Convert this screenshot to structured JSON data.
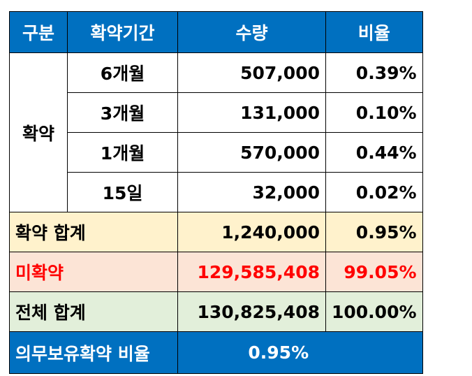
{
  "header": {
    "col1": "구분",
    "col2": "확약기간",
    "col3": "수량",
    "col4": "비율"
  },
  "group_label": "확약",
  "rows": [
    {
      "period": "6개월",
      "qty": "507,000",
      "ratio": "0.39%"
    },
    {
      "period": "3개월",
      "qty": "131,000",
      "ratio": "0.10%"
    },
    {
      "period": "1개월",
      "qty": "570,000",
      "ratio": "0.44%"
    },
    {
      "period": "15일",
      "qty": "32,000",
      "ratio": "0.02%"
    }
  ],
  "subtotal": {
    "label": "확약 합계",
    "qty": "1,240,000",
    "ratio": "0.95%"
  },
  "unconfirmed": {
    "label": "미확약",
    "qty": "129,585,408",
    "ratio": "99.05%"
  },
  "total": {
    "label": "전체 합계",
    "qty": "130,825,408",
    "ratio": "100.00%"
  },
  "footer": {
    "label": "의무보유확약 비율",
    "value": "0.95%"
  },
  "colors": {
    "header_bg": "#0070c0",
    "subtotal_bg": "#fff2cc",
    "unconfirmed_bg": "#fce4d6",
    "unconfirmed_text": "#ff0000",
    "total_bg": "#e2efda"
  }
}
